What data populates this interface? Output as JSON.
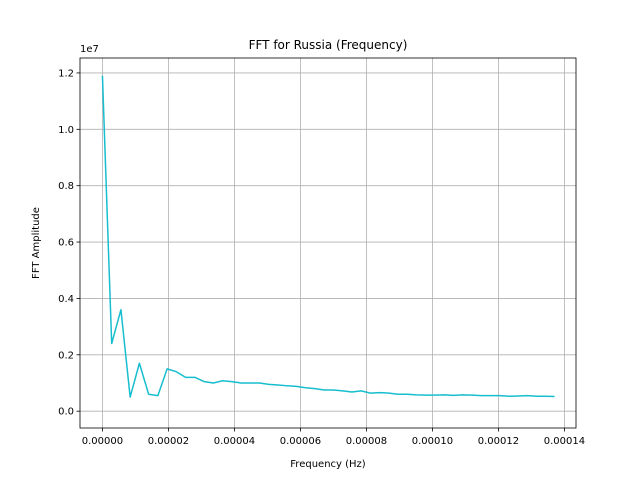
{
  "chart_data": {
    "type": "line",
    "title": "FFT for Russia (Frequency)",
    "xlabel": "Frequency (Hz)",
    "ylabel": "FFT Amplitude",
    "y_offset_label": "1e7",
    "xlim": [
      -6.8e-06,
      0.0001435
    ],
    "ylim": [
      -0.0597,
      1.253
    ],
    "x_ticks": [
      0,
      2e-05,
      4e-05,
      6e-05,
      8e-05,
      0.0001,
      0.00012,
      0.00014
    ],
    "x_tick_labels": [
      "0.00000",
      "0.00002",
      "0.00004",
      "0.00006",
      "0.00008",
      "0.00010",
      "0.00012",
      "0.00014"
    ],
    "y_ticks": [
      0,
      0.2,
      0.4,
      0.6,
      0.8,
      1.0,
      1.2
    ],
    "y_tick_labels": [
      "0.0",
      "0.2",
      "0.4",
      "0.6",
      "0.8",
      "1.0",
      "1.2"
    ],
    "grid": true,
    "line_color": "#17becf",
    "series": [
      {
        "x": [
          0,
          2.8e-06,
          5.6e-06,
          8.4e-06,
          1.12e-05,
          1.4e-05,
          1.68e-05,
          1.96e-05,
          2.24e-05,
          2.52e-05,
          2.8e-05,
          3.08e-05,
          3.36e-05,
          3.64e-05,
          3.92e-05,
          4.2e-05,
          4.48e-05,
          4.76e-05,
          5.04e-05,
          5.32e-05,
          5.6e-05,
          5.88e-05,
          6.16e-05,
          6.44e-05,
          6.72e-05,
          7e-05,
          7.28e-05,
          7.56e-05,
          7.84e-05,
          8.12e-05,
          8.4e-05,
          8.68e-05,
          8.96e-05,
          9.24e-05,
          9.52e-05,
          9.8e-05,
          0.0001008,
          0.0001036,
          0.0001064,
          0.0001092,
          0.000112,
          0.0001148,
          0.0001176,
          0.0001204,
          0.0001232,
          0.000126,
          0.0001288,
          0.0001316,
          0.0001344,
          0.000137
        ],
        "values": [
          1.19,
          0.24,
          0.36,
          0.05,
          0.17,
          0.06,
          0.055,
          0.15,
          0.14,
          0.12,
          0.12,
          0.105,
          0.1,
          0.108,
          0.105,
          0.1,
          0.1,
          0.1,
          0.095,
          0.093,
          0.09,
          0.088,
          0.083,
          0.08,
          0.075,
          0.075,
          0.072,
          0.068,
          0.072,
          0.064,
          0.066,
          0.064,
          0.06,
          0.06,
          0.058,
          0.057,
          0.057,
          0.058,
          0.056,
          0.058,
          0.057,
          0.055,
          0.055,
          0.055,
          0.053,
          0.054,
          0.055,
          0.053,
          0.053,
          0.052
        ]
      }
    ]
  }
}
